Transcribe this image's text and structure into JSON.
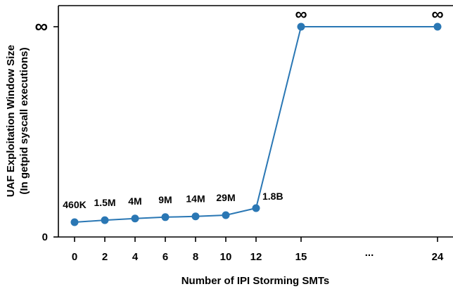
{
  "chart_data": {
    "type": "line",
    "xlabel": "Number of IPI Storming SMTs",
    "ylabel_lines": [
      "UAF Exploitation Window Size",
      "(In getpid syscall executions)"
    ],
    "x_tick_labels": [
      "0",
      "2",
      "4",
      "6",
      "8",
      "10",
      "12",
      "15",
      "...",
      "24"
    ],
    "y_tick_labels": [
      "0",
      "∞"
    ],
    "y_scale": "nonlinear (finite values compressed near 0, top level = ∞)",
    "grid": false,
    "legend": "none",
    "series_color": "#2a77b4",
    "series": [
      {
        "points": [
          {
            "x": "0",
            "value": "460K",
            "label": "460K"
          },
          {
            "x": "2",
            "value": "1.5M",
            "label": "1.5M"
          },
          {
            "x": "4",
            "value": "4M",
            "label": "4M"
          },
          {
            "x": "6",
            "value": "9M",
            "label": "9M"
          },
          {
            "x": "8",
            "value": "14M",
            "label": "14M"
          },
          {
            "x": "10",
            "value": "29M",
            "label": "29M"
          },
          {
            "x": "12",
            "value": "1.8B",
            "label": "1.8B"
          },
          {
            "x": "15",
            "value": "∞",
            "label": "∞"
          },
          {
            "x": "24",
            "value": "∞",
            "label": "∞"
          }
        ]
      }
    ]
  }
}
